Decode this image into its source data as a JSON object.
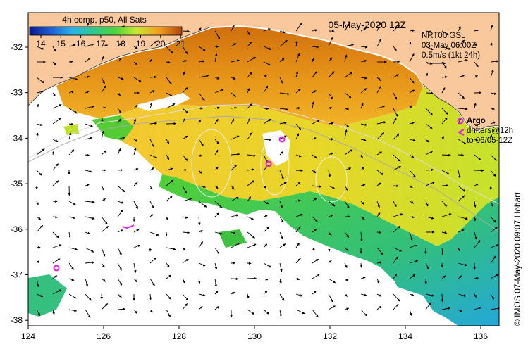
{
  "colorbar": {
    "title": "4h comp, p50, All Sats",
    "ticks": [
      "14",
      "15",
      "16",
      "17",
      "18",
      "19",
      "20",
      "21"
    ],
    "colors": [
      "#0a1a8c",
      "#1f5fd6",
      "#28b4e8",
      "#2fc98e",
      "#4ad43c",
      "#c8e832",
      "#f2a020",
      "#b0440c"
    ]
  },
  "date_label": "05-May-2020 12Z",
  "current_info": {
    "line1": "NRT00 GSL",
    "line2": "03-May 06:00Z",
    "line3": "0.5m/s (1kt 24h)"
  },
  "argo_legend": {
    "argo_label": "Argo",
    "drifters_line1": "drifters@12h",
    "drifters_line2": "to 06/05-12Z"
  },
  "credit": "© IMOS 07-May-2020 09:07 Hobart",
  "axes": {
    "x_ticks": [
      "124",
      "126",
      "128",
      "130",
      "132",
      "134",
      "136"
    ],
    "y_ticks": [
      "-32",
      "-33",
      "-34",
      "-35",
      "-36",
      "-37",
      "-38"
    ]
  },
  "colors": {
    "land": "#f9c89c",
    "ocean_missing": "#ffffff",
    "argo": "#e020e0"
  }
}
